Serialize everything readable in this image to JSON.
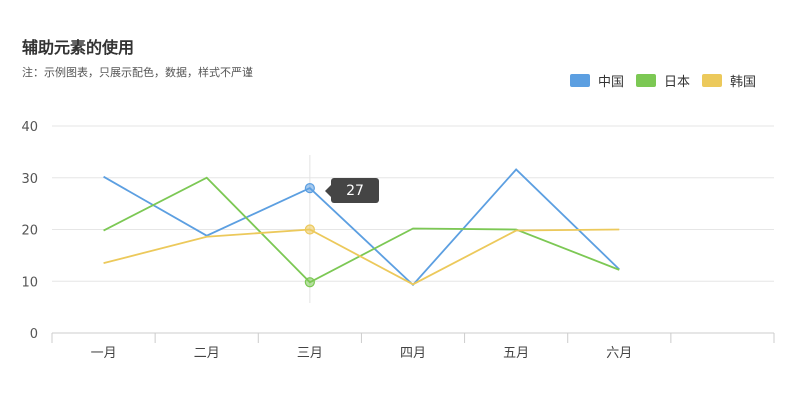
{
  "title": "辅助元素的使用",
  "subtitle": "注：示例图表，只展示配色，数据，样式不严谨",
  "colors": {
    "中国": "#5c9fe1",
    "日本": "#7cc854",
    "韩国": "#ecc95b"
  },
  "tooltip": {
    "value": "27"
  },
  "chart_data": {
    "type": "line",
    "categories": [
      "一月",
      "二月",
      "三月",
      "四月",
      "五月",
      "六月"
    ],
    "series": [
      {
        "name": "中国",
        "values": [
          30.2,
          18.8,
          28.0,
          9.3,
          31.6,
          12.3
        ]
      },
      {
        "name": "日本",
        "values": [
          19.8,
          30.0,
          9.8,
          20.2,
          20.0,
          12.2
        ]
      },
      {
        "name": "韩国",
        "values": [
          13.5,
          18.6,
          20.0,
          9.4,
          19.8,
          20.0
        ]
      }
    ],
    "yticks": [
      0,
      10,
      20,
      30,
      40
    ],
    "ylim": [
      0,
      40
    ],
    "legend": "top-right",
    "grid": true,
    "highlight_category": "三月"
  }
}
